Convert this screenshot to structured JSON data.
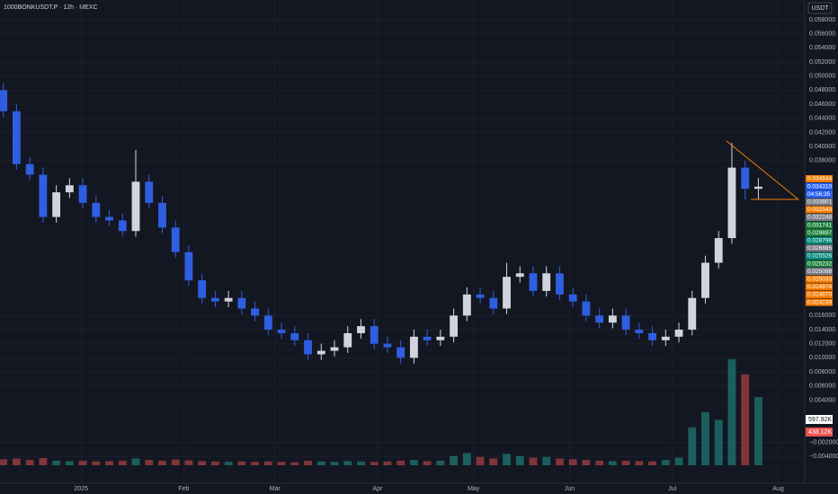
{
  "chart_data": {
    "type": "candlestick",
    "title": "1000BONKUSDT.P · 12h · MEXC",
    "currency": "USDT",
    "up_color": "#d1d4dc",
    "down_color": "#2f5ee0",
    "x": [
      1,
      5,
      9,
      13,
      17,
      21,
      25,
      29,
      33,
      37,
      41,
      45,
      49,
      53,
      57,
      61,
      65,
      69,
      73,
      77,
      81,
      85,
      89,
      93,
      97,
      101,
      105,
      109,
      113,
      117,
      121,
      125,
      129,
      133,
      137,
      141,
      145,
      149,
      153,
      157,
      161,
      165,
      169,
      173,
      177,
      181,
      185,
      189,
      193,
      197,
      201,
      205,
      209,
      213,
      217,
      221,
      225,
      229
    ],
    "open": [
      0.048,
      0.045,
      0.0375,
      0.036,
      0.03,
      0.0335,
      0.0345,
      0.032,
      0.03,
      0.0295,
      0.028,
      0.035,
      0.032,
      0.0285,
      0.025,
      0.021,
      0.0185,
      0.018,
      0.0185,
      0.017,
      0.016,
      0.014,
      0.0135,
      0.0125,
      0.0105,
      0.011,
      0.0115,
      0.0135,
      0.0145,
      0.012,
      0.0115,
      0.01,
      0.013,
      0.0125,
      0.013,
      0.016,
      0.019,
      0.0185,
      0.017,
      0.0215,
      0.022,
      0.0195,
      0.022,
      0.019,
      0.018,
      0.016,
      0.015,
      0.016,
      0.014,
      0.0135,
      0.0125,
      0.013,
      0.014,
      0.0185,
      0.0235,
      0.027,
      0.037,
      0.034
    ],
    "high": [
      0.049,
      0.046,
      0.0385,
      0.037,
      0.0345,
      0.0355,
      0.0355,
      0.033,
      0.031,
      0.0305,
      0.0395,
      0.036,
      0.033,
      0.0295,
      0.026,
      0.022,
      0.0195,
      0.0195,
      0.0195,
      0.018,
      0.017,
      0.015,
      0.0145,
      0.0135,
      0.012,
      0.0125,
      0.0145,
      0.0155,
      0.0155,
      0.013,
      0.0125,
      0.014,
      0.014,
      0.014,
      0.017,
      0.02,
      0.02,
      0.0195,
      0.0235,
      0.023,
      0.023,
      0.023,
      0.023,
      0.02,
      0.019,
      0.017,
      0.017,
      0.017,
      0.015,
      0.0145,
      0.014,
      0.015,
      0.0195,
      0.0245,
      0.028,
      0.0405,
      0.038,
      0.0355
    ],
    "low": [
      0.0442,
      0.0367,
      0.0352,
      0.0292,
      0.0292,
      0.0327,
      0.0312,
      0.0292,
      0.0287,
      0.0272,
      0.0272,
      0.0312,
      0.0277,
      0.0242,
      0.0202,
      0.0177,
      0.0172,
      0.0172,
      0.0162,
      0.0152,
      0.0132,
      0.0127,
      0.0117,
      0.0097,
      0.0097,
      0.0102,
      0.0107,
      0.0127,
      0.0112,
      0.0107,
      0.0092,
      0.0092,
      0.0117,
      0.0117,
      0.0122,
      0.0152,
      0.0177,
      0.0162,
      0.0162,
      0.0207,
      0.0187,
      0.0187,
      0.0182,
      0.0172,
      0.0152,
      0.0142,
      0.0142,
      0.0132,
      0.0127,
      0.0117,
      0.0117,
      0.0122,
      0.0132,
      0.0177,
      0.0227,
      0.0262,
      0.0325,
      0.0325
    ],
    "close": [
      0.045,
      0.0375,
      0.036,
      0.03,
      0.0335,
      0.0345,
      0.032,
      0.03,
      0.0295,
      0.028,
      0.035,
      0.032,
      0.0285,
      0.025,
      0.021,
      0.0185,
      0.018,
      0.0185,
      0.017,
      0.016,
      0.014,
      0.0135,
      0.0125,
      0.0105,
      0.011,
      0.0115,
      0.0135,
      0.0145,
      0.012,
      0.0115,
      0.01,
      0.013,
      0.0125,
      0.013,
      0.016,
      0.019,
      0.0185,
      0.017,
      0.0215,
      0.022,
      0.0195,
      0.022,
      0.019,
      0.018,
      0.016,
      0.015,
      0.016,
      0.014,
      0.0135,
      0.0125,
      0.013,
      0.014,
      0.0185,
      0.0235,
      0.027,
      0.037,
      0.034,
      0.0343
    ],
    "volume": [
      80,
      90,
      70,
      95,
      60,
      55,
      60,
      50,
      55,
      60,
      90,
      70,
      60,
      75,
      65,
      55,
      50,
      45,
      50,
      45,
      50,
      45,
      40,
      60,
      50,
      45,
      55,
      50,
      45,
      50,
      60,
      70,
      55,
      60,
      120,
      160,
      110,
      90,
      150,
      120,
      100,
      110,
      90,
      80,
      70,
      60,
      55,
      60,
      55,
      50,
      70,
      100,
      500,
      700,
      600,
      1400,
      1200,
      900
    ],
    "volume_ylim": [
      0,
      1600
    ],
    "xlim": [
      0,
      243
    ],
    "xticks": [
      {
        "value": 24.5,
        "label": "2025"
      },
      {
        "value": 55.5,
        "label": "Feb"
      },
      {
        "value": 83,
        "label": "Mar"
      },
      {
        "value": 114,
        "label": "Apr"
      },
      {
        "value": 143,
        "label": "May"
      },
      {
        "value": 172,
        "label": "Jun"
      },
      {
        "value": 203,
        "label": "Jul"
      },
      {
        "value": 235,
        "label": "Aug"
      }
    ],
    "ylim": [
      -0.0078,
      0.0608
    ],
    "yticks": [
      {
        "value": 0.058,
        "label": "0.058000"
      },
      {
        "value": 0.056,
        "label": "0.056000"
      },
      {
        "value": 0.054,
        "label": "0.054000"
      },
      {
        "value": 0.052,
        "label": "0.052000"
      },
      {
        "value": 0.05,
        "label": "0.050000"
      },
      {
        "value": 0.048,
        "label": "0.048000"
      },
      {
        "value": 0.046,
        "label": "0.046000"
      },
      {
        "value": 0.044,
        "label": "0.044000"
      },
      {
        "value": 0.042,
        "label": "0.042000"
      },
      {
        "value": 0.04,
        "label": "0.040000"
      },
      {
        "value": 0.038,
        "label": "0.038000"
      },
      {
        "value": 0.016,
        "label": "0.016000"
      },
      {
        "value": 0.014,
        "label": "0.014000"
      },
      {
        "value": 0.012,
        "label": "0.012000"
      },
      {
        "value": 0.01,
        "label": "0.010000"
      },
      {
        "value": 0.008,
        "label": "0.008000"
      },
      {
        "value": 0.006,
        "label": "0.006000"
      },
      {
        "value": 0.004,
        "label": "0.004000"
      },
      {
        "value": -0.002,
        "label": "−0.002000"
      },
      {
        "value": -0.004,
        "label": "−0.004000"
      }
    ],
    "price_labels": [
      {
        "text": "0.034644",
        "color": "#f57c00"
      },
      {
        "text": "0.034310",
        "color": "#2962ff"
      },
      {
        "text": "04:56:35",
        "color": "#2962ff"
      },
      {
        "text": "0.033801",
        "color": "#787b86"
      },
      {
        "text": "0.032543",
        "color": "#f57c00"
      },
      {
        "text": "0.032248",
        "color": "#787b86"
      },
      {
        "text": "0.031741",
        "color": "#1b7f3a"
      },
      {
        "text": "0.029897",
        "color": "#1b7f3a"
      },
      {
        "text": "0.028796",
        "color": "#00897b"
      },
      {
        "text": "0.026885",
        "color": "#787b86"
      },
      {
        "text": "0.025526",
        "color": "#00897b"
      },
      {
        "text": "0.025232",
        "color": "#1b7f3a"
      },
      {
        "text": "0.025098",
        "color": "#787b86"
      },
      {
        "text": "0.025033",
        "color": "#f57c00"
      },
      {
        "text": "0.024974",
        "color": "#f57c00"
      },
      {
        "text": "0.024670",
        "color": "#f57c00"
      },
      {
        "text": "0.024239",
        "color": "#f57c00"
      }
    ],
    "volume_labels": [
      {
        "text": "597.92K",
        "color": "#ffffff"
      },
      {
        "text": "438.12K",
        "color": "#ef5350"
      }
    ]
  }
}
